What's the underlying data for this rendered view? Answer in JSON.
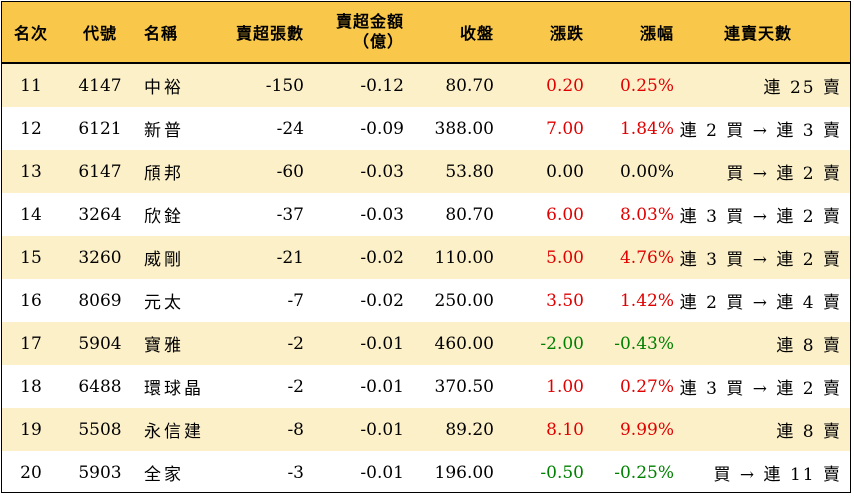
{
  "headers": {
    "rank": "名次",
    "code": "代號",
    "name": "名稱",
    "net_sell_lots": "賣超張數",
    "net_sell_amount_line1": "賣超金額",
    "net_sell_amount_line2": "（億）",
    "close": "收盤",
    "change": "漲跌",
    "change_pct": "漲幅",
    "streak": "連賣天數"
  },
  "colors": {
    "header_bg": "#f9c84a",
    "odd_row_bg": "#fcf0c9",
    "up": "#e00000",
    "down": "#008000"
  },
  "rows": [
    {
      "rank": "11",
      "code": "4147",
      "name": "中裕",
      "net": "-150",
      "amount": "-0.12",
      "close": "80.70",
      "change": "0.20",
      "pct": "0.25%",
      "dir": "up",
      "streak": "連 25 賣"
    },
    {
      "rank": "12",
      "code": "6121",
      "name": "新普",
      "net": "-24",
      "amount": "-0.09",
      "close": "388.00",
      "change": "7.00",
      "pct": "1.84%",
      "dir": "up",
      "streak": "連 2 買 → 連 3 賣"
    },
    {
      "rank": "13",
      "code": "6147",
      "name": "頎邦",
      "net": "-60",
      "amount": "-0.03",
      "close": "53.80",
      "change": "0.00",
      "pct": "0.00%",
      "dir": "flat",
      "streak": "買 → 連 2 賣"
    },
    {
      "rank": "14",
      "code": "3264",
      "name": "欣銓",
      "net": "-37",
      "amount": "-0.03",
      "close": "80.70",
      "change": "6.00",
      "pct": "8.03%",
      "dir": "up",
      "streak": "連 3 買 → 連 2 賣"
    },
    {
      "rank": "15",
      "code": "3260",
      "name": "威剛",
      "net": "-21",
      "amount": "-0.02",
      "close": "110.00",
      "change": "5.00",
      "pct": "4.76%",
      "dir": "up",
      "streak": "連 3 買 → 連 2 賣"
    },
    {
      "rank": "16",
      "code": "8069",
      "name": "元太",
      "net": "-7",
      "amount": "-0.02",
      "close": "250.00",
      "change": "3.50",
      "pct": "1.42%",
      "dir": "up",
      "streak": "連 2 買 → 連 4 賣"
    },
    {
      "rank": "17",
      "code": "5904",
      "name": "寶雅",
      "net": "-2",
      "amount": "-0.01",
      "close": "460.00",
      "change": "-2.00",
      "pct": "-0.43%",
      "dir": "down",
      "streak": "連 8 賣"
    },
    {
      "rank": "18",
      "code": "6488",
      "name": "環球晶",
      "net": "-2",
      "amount": "-0.01",
      "close": "370.50",
      "change": "1.00",
      "pct": "0.27%",
      "dir": "up",
      "streak": "連 3 買 → 連 2 賣"
    },
    {
      "rank": "19",
      "code": "5508",
      "name": "永信建",
      "net": "-8",
      "amount": "-0.01",
      "close": "89.20",
      "change": "8.10",
      "pct": "9.99%",
      "dir": "up",
      "streak": "連 8 賣"
    },
    {
      "rank": "20",
      "code": "5903",
      "name": "全家",
      "net": "-3",
      "amount": "-0.01",
      "close": "196.00",
      "change": "-0.50",
      "pct": "-0.25%",
      "dir": "down",
      "streak": "買 → 連 11 賣"
    }
  ]
}
